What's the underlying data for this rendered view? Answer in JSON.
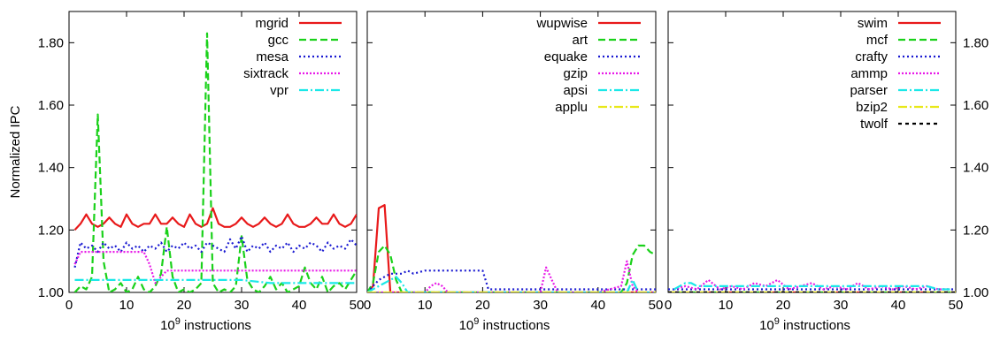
{
  "chart_data": [
    {
      "type": "line",
      "ylabel": "Normalized IPC",
      "xlabel_base": "10",
      "xlabel_exp": "9",
      "xlabel_rest": " instructions",
      "xlim": [
        0,
        50
      ],
      "ylim": [
        1.0,
        1.9
      ],
      "xticks": [
        0,
        10,
        20,
        30,
        40,
        50
      ],
      "yticks": [
        1.0,
        1.2,
        1.4,
        1.6,
        1.8
      ],
      "ytick_labels": [
        "1.00",
        "1.20",
        "1.40",
        "1.60",
        "1.80"
      ],
      "y_axis_side": "left",
      "legend": "top-right",
      "series": [
        {
          "name": "mgrid",
          "color": "#e8191a",
          "dash": "solid",
          "x": [
            1,
            2,
            3,
            4,
            5,
            6,
            7,
            8,
            9,
            10,
            11,
            12,
            13,
            14,
            15,
            16,
            17,
            18,
            19,
            20,
            21,
            22,
            23,
            24,
            25,
            26,
            27,
            28,
            29,
            30,
            31,
            32,
            33,
            34,
            35,
            36,
            37,
            38,
            39,
            40,
            41,
            42,
            43,
            44,
            45,
            46,
            47,
            48,
            49,
            50
          ],
          "y": [
            1.2,
            1.22,
            1.25,
            1.22,
            1.21,
            1.22,
            1.24,
            1.22,
            1.21,
            1.25,
            1.22,
            1.21,
            1.22,
            1.22,
            1.25,
            1.22,
            1.22,
            1.24,
            1.22,
            1.21,
            1.25,
            1.22,
            1.21,
            1.22,
            1.27,
            1.22,
            1.21,
            1.21,
            1.22,
            1.24,
            1.22,
            1.21,
            1.22,
            1.24,
            1.22,
            1.21,
            1.22,
            1.25,
            1.22,
            1.21,
            1.21,
            1.22,
            1.24,
            1.22,
            1.22,
            1.25,
            1.22,
            1.21,
            1.22,
            1.25
          ]
        },
        {
          "name": "gcc",
          "color": "#1ad11a",
          "dash": "8,4",
          "x": [
            1,
            2,
            3,
            4,
            5,
            6,
            7,
            8,
            9,
            10,
            11,
            12,
            13,
            14,
            15,
            16,
            17,
            18,
            19,
            20,
            21,
            22,
            23,
            24,
            25,
            26,
            27,
            28,
            29,
            30,
            31,
            32,
            33,
            34,
            35,
            36,
            37,
            38,
            39,
            40,
            41,
            42,
            43,
            44,
            45,
            46,
            47,
            48,
            49,
            50
          ],
          "y": [
            1.0,
            1.02,
            1.01,
            1.05,
            1.57,
            1.1,
            1.0,
            1.01,
            1.03,
            1.0,
            1.01,
            1.05,
            1.01,
            1.0,
            1.02,
            1.06,
            1.21,
            1.05,
            1.0,
            1.01,
            1.0,
            1.01,
            1.03,
            1.83,
            1.03,
            1.0,
            1.01,
            1.0,
            1.02,
            1.18,
            1.04,
            1.01,
            1.0,
            1.02,
            1.05,
            1.01,
            1.03,
            1.0,
            1.01,
            1.02,
            1.08,
            1.03,
            1.01,
            1.05,
            1.0,
            1.02,
            1.03,
            1.01,
            1.04,
            1.07
          ]
        },
        {
          "name": "mesa",
          "color": "#1a1ad1",
          "dash": "2,3",
          "x": [
            1,
            2,
            3,
            4,
            5,
            6,
            7,
            8,
            9,
            10,
            11,
            12,
            13,
            14,
            15,
            16,
            17,
            18,
            19,
            20,
            21,
            22,
            23,
            24,
            25,
            26,
            27,
            28,
            29,
            30,
            31,
            32,
            33,
            34,
            35,
            36,
            37,
            38,
            39,
            40,
            41,
            42,
            43,
            44,
            45,
            46,
            47,
            48,
            49,
            50
          ],
          "y": [
            1.08,
            1.16,
            1.14,
            1.15,
            1.13,
            1.16,
            1.14,
            1.15,
            1.13,
            1.16,
            1.14,
            1.15,
            1.13,
            1.15,
            1.14,
            1.16,
            1.13,
            1.15,
            1.14,
            1.16,
            1.14,
            1.15,
            1.13,
            1.16,
            1.15,
            1.14,
            1.13,
            1.17,
            1.14,
            1.18,
            1.13,
            1.15,
            1.14,
            1.16,
            1.13,
            1.15,
            1.14,
            1.16,
            1.13,
            1.15,
            1.14,
            1.16,
            1.15,
            1.13,
            1.16,
            1.14,
            1.15,
            1.14,
            1.17,
            1.15
          ]
        },
        {
          "name": "sixtrack",
          "color": "#e81ae8",
          "dash": "2,2",
          "x": [
            1,
            2,
            3,
            5,
            10,
            13,
            14,
            15,
            16,
            17,
            20,
            30,
            40,
            50
          ],
          "y": [
            1.09,
            1.13,
            1.13,
            1.13,
            1.13,
            1.13,
            1.09,
            1.03,
            1.05,
            1.07,
            1.07,
            1.07,
            1.07,
            1.07
          ]
        },
        {
          "name": "vpr",
          "color": "#1ae8e8",
          "dash": "10,3,2,3",
          "x": [
            1,
            2,
            3,
            5,
            10,
            15,
            20,
            25,
            30,
            35,
            40,
            45,
            50
          ],
          "y": [
            1.04,
            1.04,
            1.04,
            1.04,
            1.04,
            1.04,
            1.04,
            1.04,
            1.04,
            1.03,
            1.03,
            1.03,
            1.03
          ]
        }
      ]
    },
    {
      "type": "line",
      "xlabel_base": "10",
      "xlabel_exp": "9",
      "xlabel_rest": " instructions",
      "xlim": [
        0,
        50
      ],
      "ylim": [
        1.0,
        1.9
      ],
      "xticks": [
        0,
        10,
        20,
        30,
        40,
        50
      ],
      "yticks": [
        1.0,
        1.2,
        1.4,
        1.6,
        1.8
      ],
      "ytick_labels": [],
      "y_axis_side": "none",
      "legend": "top-right",
      "series": [
        {
          "name": "wupwise",
          "color": "#e8191a",
          "dash": "solid",
          "x": [
            0,
            1,
            2,
            3,
            4,
            5,
            6,
            7,
            10,
            20,
            30,
            40,
            50
          ],
          "y": [
            1.0,
            1.02,
            1.27,
            1.28,
            1.0,
            1.0,
            1.0,
            1.0,
            1.0,
            1.0,
            1.0,
            1.0,
            1.0
          ]
        },
        {
          "name": "art",
          "color": "#1ad11a",
          "dash": "8,4",
          "x": [
            0,
            1,
            2,
            3,
            4,
            5,
            6,
            7,
            10,
            20,
            30,
            40,
            44,
            45,
            46,
            47,
            48,
            49,
            50
          ],
          "y": [
            1.0,
            1.03,
            1.13,
            1.15,
            1.12,
            1.04,
            1.0,
            1.0,
            1.0,
            1.0,
            1.0,
            1.0,
            1.0,
            1.03,
            1.12,
            1.15,
            1.15,
            1.13,
            1.12
          ]
        },
        {
          "name": "equake",
          "color": "#1a1ad1",
          "dash": "2,3",
          "x": [
            0,
            1,
            2,
            3,
            4,
            5,
            6,
            7,
            8,
            10,
            15,
            20,
            21,
            25,
            30,
            35,
            40,
            45,
            50
          ],
          "y": [
            1.0,
            1.02,
            1.04,
            1.05,
            1.06,
            1.06,
            1.06,
            1.07,
            1.06,
            1.07,
            1.07,
            1.07,
            1.01,
            1.01,
            1.01,
            1.01,
            1.01,
            1.01,
            1.01
          ]
        },
        {
          "name": "gzip",
          "color": "#e81ae8",
          "dash": "2,2",
          "x": [
            0,
            5,
            10,
            11,
            12,
            13,
            14,
            15,
            20,
            30,
            31,
            32,
            33,
            40,
            44,
            45,
            46,
            47,
            50
          ],
          "y": [
            1.0,
            1.0,
            1.0,
            1.02,
            1.03,
            1.02,
            1.0,
            1.0,
            1.0,
            1.0,
            1.08,
            1.04,
            1.0,
            1.0,
            1.02,
            1.1,
            1.02,
            1.0,
            1.0
          ]
        },
        {
          "name": "apsi",
          "color": "#1ae8e8",
          "dash": "10,3,2,3",
          "x": [
            0,
            2,
            4,
            5,
            6,
            7,
            8,
            10,
            20,
            30,
            40,
            45,
            46,
            47,
            50
          ],
          "y": [
            1.0,
            1.02,
            1.04,
            1.05,
            1.03,
            1.0,
            1.0,
            1.0,
            1.0,
            1.0,
            1.0,
            1.0,
            1.04,
            1.0,
            1.0
          ]
        },
        {
          "name": "applu",
          "color": "#e8e81a",
          "dash": "10,3,2,3",
          "x": [
            0,
            10,
            20,
            30,
            40,
            50
          ],
          "y": [
            1.0,
            1.0,
            1.0,
            1.0,
            1.0,
            1.0
          ]
        }
      ]
    },
    {
      "type": "line",
      "xlabel_base": "10",
      "xlabel_exp": "9",
      "xlabel_rest": " instructions",
      "xlim": [
        0,
        50
      ],
      "ylim": [
        1.0,
        1.9
      ],
      "xticks": [
        0,
        10,
        20,
        30,
        40,
        50
      ],
      "yticks": [
        1.0,
        1.2,
        1.4,
        1.6,
        1.8
      ],
      "ytick_labels": [
        "1.00",
        "1.20",
        "1.40",
        "1.60",
        "1.80"
      ],
      "y_axis_side": "right",
      "legend": "top-right",
      "series": [
        {
          "name": "swim",
          "color": "#e8191a",
          "dash": "solid",
          "x": [
            0,
            10,
            20,
            30,
            40,
            50
          ],
          "y": [
            1.0,
            1.0,
            1.0,
            1.0,
            1.0,
            1.0
          ]
        },
        {
          "name": "mcf",
          "color": "#1ad11a",
          "dash": "8,4",
          "x": [
            0,
            10,
            20,
            30,
            40,
            50
          ],
          "y": [
            1.0,
            1.0,
            1.0,
            1.0,
            1.0,
            1.0
          ]
        },
        {
          "name": "crafty",
          "color": "#1a1ad1",
          "dash": "2,3",
          "x": [
            0,
            5,
            10,
            15,
            20,
            25,
            30,
            35,
            40,
            45,
            50
          ],
          "y": [
            1.01,
            1.01,
            1.01,
            1.01,
            1.01,
            1.01,
            1.01,
            1.01,
            1.01,
            1.01,
            1.01
          ]
        },
        {
          "name": "ammp",
          "color": "#e81ae8",
          "dash": "2,2",
          "x": [
            1,
            3,
            5,
            7,
            9,
            11,
            13,
            15,
            17,
            19,
            21,
            23,
            25,
            27,
            29,
            31,
            33,
            35,
            37,
            39,
            41,
            43,
            45,
            47,
            49
          ],
          "y": [
            1.01,
            1.02,
            1.01,
            1.04,
            1.01,
            1.02,
            1.01,
            1.03,
            1.02,
            1.04,
            1.01,
            1.02,
            1.03,
            1.01,
            1.02,
            1.01,
            1.03,
            1.01,
            1.02,
            1.01,
            1.02,
            1.01,
            1.02,
            1.01,
            1.01
          ]
        },
        {
          "name": "parser",
          "color": "#1ae8e8",
          "dash": "10,3,2,3",
          "x": [
            1,
            2,
            3,
            4,
            5,
            7,
            9,
            11,
            13,
            15,
            17,
            19,
            21,
            23,
            25,
            27,
            29,
            31,
            33,
            35,
            37,
            39,
            41,
            43,
            45,
            47,
            49
          ],
          "y": [
            1.01,
            1.02,
            1.03,
            1.03,
            1.02,
            1.02,
            1.02,
            1.02,
            1.02,
            1.02,
            1.02,
            1.02,
            1.02,
            1.02,
            1.02,
            1.02,
            1.02,
            1.02,
            1.02,
            1.02,
            1.02,
            1.02,
            1.02,
            1.02,
            1.02,
            1.01,
            1.01
          ]
        },
        {
          "name": "bzip2",
          "color": "#e8e81a",
          "dash": "10,3,2,3",
          "x": [
            0,
            10,
            20,
            30,
            40,
            50
          ],
          "y": [
            1.0,
            1.0,
            1.0,
            1.0,
            1.0,
            1.0
          ]
        },
        {
          "name": "twolf",
          "color": "#000000",
          "dash": "4,4",
          "x": [
            0,
            10,
            20,
            30,
            40,
            50
          ],
          "y": [
            1.0,
            1.0,
            1.0,
            1.0,
            1.0,
            1.0
          ]
        }
      ]
    }
  ]
}
